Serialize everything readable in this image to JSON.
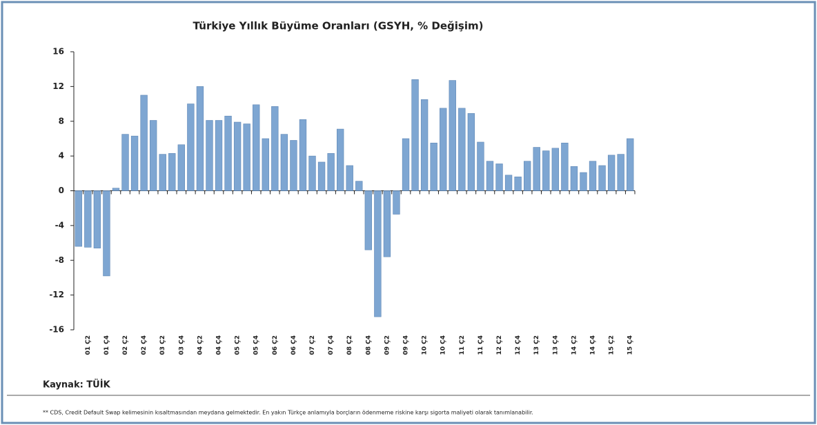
{
  "chart_data": {
    "type": "bar",
    "title": "Türkiye Yıllık Büyüme Oranları (GSYH, % Değişim)",
    "categories": [
      null,
      "01 Ç2",
      null,
      "01 Ç4",
      null,
      "02 Ç2",
      null,
      "02 Ç4",
      null,
      "03 Ç2",
      null,
      "03 Ç4",
      null,
      "04 Ç2",
      null,
      "04 Ç4",
      null,
      "05 Ç2",
      null,
      "05 Ç4",
      null,
      "06 Ç2",
      null,
      "06 Ç4",
      null,
      "07 Ç2",
      null,
      "07 Ç4",
      null,
      "08 Ç2",
      null,
      "08 Ç4",
      null,
      "09 Ç2",
      null,
      "09 Ç4",
      null,
      "10 Ç2",
      null,
      "10 Ç4",
      null,
      "11 Ç2",
      null,
      "11 Ç4",
      null,
      "12 Ç2",
      null,
      "12 Ç4",
      null,
      "13 Ç2",
      null,
      "13 Ç4",
      null,
      "14 Ç2",
      null,
      "14 Ç4",
      null,
      "15 Ç2",
      null,
      "15 Ç4"
    ],
    "values": [
      -6.4,
      -6.5,
      -6.6,
      -9.8,
      0.3,
      6.5,
      6.3,
      11,
      8.1,
      4.2,
      4.3,
      5.3,
      10,
      12,
      8.1,
      8.1,
      8.6,
      7.9,
      7.7,
      9.9,
      6,
      9.7,
      6.5,
      5.8,
      8.2,
      4,
      3.3,
      4.3,
      7.1,
      2.9,
      1.1,
      -6.8,
      -14.5,
      -7.6,
      -2.7,
      6,
      12.8,
      10.5,
      5.5,
      9.5,
      12.7,
      9.5,
      8.9,
      5.6,
      3.4,
      3.1,
      1.8,
      1.6,
      3.4,
      5,
      4.6,
      4.9,
      5.5,
      2.8,
      2.1,
      3.4,
      2.9,
      4.1,
      4.2,
      6
    ],
    "color": "#7ea6d2",
    "ylim": [
      -16,
      16
    ],
    "yticks": [
      16,
      12,
      8,
      4,
      0,
      -4,
      -8,
      -12,
      -16
    ],
    "source": "Kaynak: TÜİK",
    "footnote": "** CDS, Credit Default Swap kelimesinin kısaltmasından meydana gelmektedir. En yakın Türkçe anlamıyla borçların ödenmeme riskine karşı sigorta maliyeti olarak tanımlanabilir."
  }
}
